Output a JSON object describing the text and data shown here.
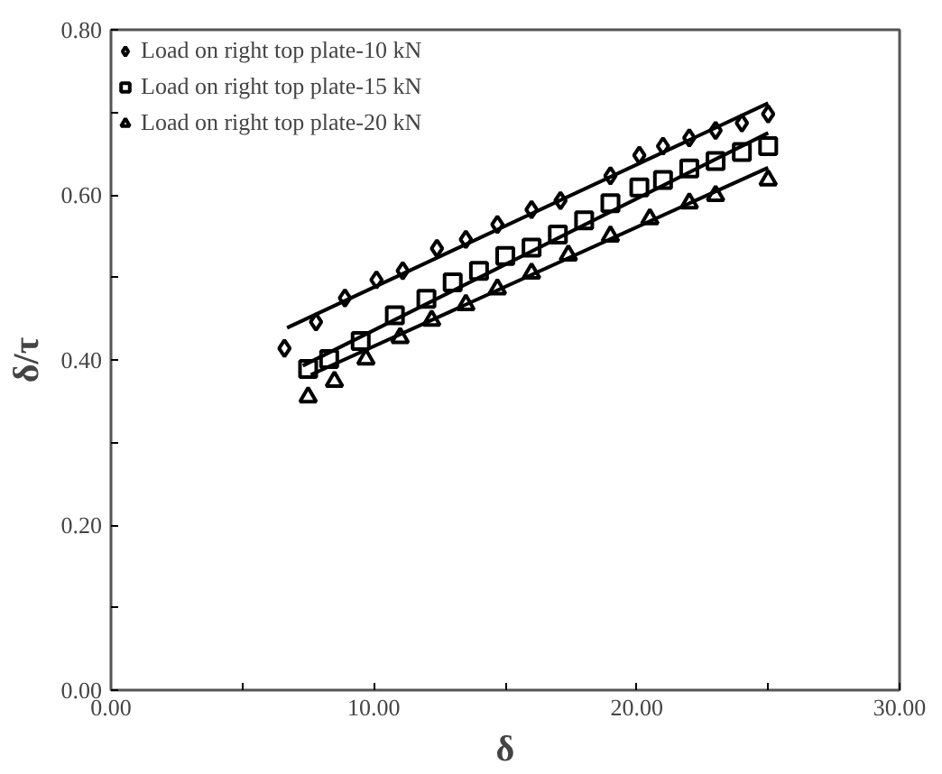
{
  "chart_data": {
    "type": "scatter",
    "xlabel": "δ",
    "ylabel": "δ/τ",
    "xlim": [
      0,
      30
    ],
    "ylim": [
      0,
      0.8
    ],
    "xticks": [
      {
        "value": 0,
        "label": "0.00"
      },
      {
        "value": 5,
        "label": null
      },
      {
        "value": 10,
        "label": "10.00"
      },
      {
        "value": 15,
        "label": null
      },
      {
        "value": 20,
        "label": "20.00"
      },
      {
        "value": 25,
        "label": null
      },
      {
        "value": 30,
        "label": "30.00"
      }
    ],
    "yticks": [
      {
        "value": 0,
        "label": "0.00"
      },
      {
        "value": 0.1,
        "label": null
      },
      {
        "value": 0.2,
        "label": "0.20"
      },
      {
        "value": 0.3,
        "label": null
      },
      {
        "value": 0.4,
        "label": "0.40"
      },
      {
        "value": 0.5,
        "label": null
      },
      {
        "value": 0.6,
        "label": "0.60"
      },
      {
        "value": 0.7,
        "label": null
      },
      {
        "value": 0.8,
        "label": "0.80"
      }
    ],
    "grid": false,
    "legend": "top left",
    "series": [
      {
        "name": "Load on right top plate-10 kN",
        "color": "#000000",
        "marker": "diamond",
        "x": [
          6.6,
          7.8,
          8.9,
          10.1,
          11.1,
          12.4,
          13.5,
          14.7,
          16.0,
          17.1,
          19.0,
          20.1,
          21.0,
          22.0,
          23.0,
          24.0,
          25.0
        ],
        "values": [
          0.414,
          0.446,
          0.475,
          0.497,
          0.508,
          0.535,
          0.546,
          0.564,
          0.582,
          0.593,
          0.623,
          0.648,
          0.659,
          0.669,
          0.678,
          0.687,
          0.698
        ]
      },
      {
        "name": "Load on right top plate-15 kN",
        "color": "#000000",
        "marker": "square",
        "x": [
          7.5,
          8.3,
          9.5,
          10.8,
          12.0,
          13.0,
          14.0,
          15.0,
          16.0,
          17.0,
          18.0,
          19.0,
          20.1,
          21.0,
          22.0,
          23.0,
          24.0,
          25.0
        ],
        "values": [
          0.389,
          0.401,
          0.423,
          0.454,
          0.474,
          0.494,
          0.508,
          0.526,
          0.536,
          0.552,
          0.569,
          0.59,
          0.609,
          0.618,
          0.632,
          0.641,
          0.652,
          0.659
        ]
      },
      {
        "name": "Load on right top plate-20 kN",
        "color": "#000000",
        "marker": "triangle",
        "x": [
          7.5,
          8.5,
          9.7,
          11.0,
          12.2,
          13.5,
          14.7,
          16.0,
          17.4,
          19.0,
          20.5,
          22.0,
          23.0,
          25.0
        ],
        "values": [
          0.355,
          0.374,
          0.401,
          0.427,
          0.448,
          0.467,
          0.486,
          0.505,
          0.527,
          0.55,
          0.571,
          0.59,
          0.599,
          0.618
        ]
      },
      {
        "type": "line",
        "color": "#000000",
        "x": [
          6.7,
          25.0
        ],
        "values": [
          0.439,
          0.711
        ]
      },
      {
        "type": "line",
        "color": "#000000",
        "x": [
          7.3,
          25.0
        ],
        "values": [
          0.393,
          0.675
        ]
      },
      {
        "type": "line",
        "color": "#000000",
        "x": [
          7.6,
          25.0
        ],
        "values": [
          0.382,
          0.633
        ]
      }
    ]
  }
}
